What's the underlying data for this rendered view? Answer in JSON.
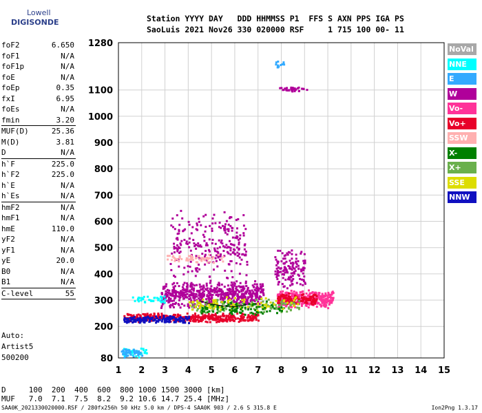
{
  "logo": {
    "line1": "Lowell",
    "line2": "DIGISONDE"
  },
  "header": {
    "line1": "Station YYYY DAY   DDD HHMMSS P1  FFS S AXN PPS IGA PS",
    "line2": "SaoLuis 2021 Nov26 330 020000 RSF     1 715 100 00- 11"
  },
  "params": [
    {
      "label": "foF2",
      "value": "6.650"
    },
    {
      "label": "foF1",
      "value": "N/A"
    },
    {
      "label": "foF1p",
      "value": "N/A"
    },
    {
      "label": "foE",
      "value": "N/A"
    },
    {
      "label": "foEp",
      "value": "0.35"
    },
    {
      "label": "fxI",
      "value": "6.95"
    },
    {
      "label": "foEs",
      "value": "N/A"
    },
    {
      "label": "fmin",
      "value": "3.20"
    },
    {
      "sep": true
    },
    {
      "label": "MUF(D)",
      "value": "25.36"
    },
    {
      "label": "M(D)",
      "value": "3.81"
    },
    {
      "label": "D",
      "value": "N/A"
    },
    {
      "sep": true
    },
    {
      "label": "h`F",
      "value": "225.0"
    },
    {
      "label": "h`F2",
      "value": "225.0"
    },
    {
      "label": "h`E",
      "value": "N/A"
    },
    {
      "label": "h`Es",
      "value": "N/A"
    },
    {
      "sep": true
    },
    {
      "label": "hmF2",
      "value": "N/A"
    },
    {
      "label": "hmF1",
      "value": "N/A"
    },
    {
      "label": "hmE",
      "value": "110.0"
    },
    {
      "label": "yF2",
      "value": "N/A"
    },
    {
      "label": "yF1",
      "value": "N/A"
    },
    {
      "label": "yE",
      "value": "20.0"
    },
    {
      "label": "B0",
      "value": "N/A"
    },
    {
      "label": "B1",
      "value": "N/A"
    },
    {
      "sep": true
    },
    {
      "label": "C-level",
      "value": "55"
    },
    {
      "sep": true
    }
  ],
  "auto": {
    "line1": "Auto:",
    "line2": "Artist5",
    "line3": "500200"
  },
  "muf_table": {
    "row_d": "D     100  200  400  600  800 1000 1500 3000 [km]",
    "row_muf": "MUF   7.0  7.1  7.5  8.2  9.2 10.6 14.7 25.4 [MHz]"
  },
  "footer": "SAA0K_2021330020000.RSF / 280fx256h 50 kHz 5.0 km / DPS-4 SAA0K 903 / 2.6 S 315.8 E",
  "version": "Ion2Png 1.3.17",
  "legend": [
    {
      "label": "NoVal",
      "color": "#a8a8a8"
    },
    {
      "label": "NNE",
      "color": "#00ffff"
    },
    {
      "label": "E",
      "color": "#33aaff"
    },
    {
      "label": "W",
      "color": "#b0009a"
    },
    {
      "label": "Vo-",
      "color": "#ff3399"
    },
    {
      "label": "Vo+",
      "color": "#e8002a"
    },
    {
      "label": "SSW",
      "color": "#ffb0b0"
    },
    {
      "label": "X-",
      "color": "#008000"
    },
    {
      "label": "X+",
      "color": "#6ab04c"
    },
    {
      "label": "SSE",
      "color": "#dddd00"
    },
    {
      "label": "NNW",
      "color": "#1010c0"
    }
  ],
  "chart_data": {
    "type": "scatter",
    "title": "",
    "xlabel": "",
    "ylabel": "",
    "xlim": [
      1,
      15
    ],
    "ylim": [
      80,
      1280
    ],
    "x_ticks": [
      "1",
      "2",
      "3",
      "4",
      "5",
      "6",
      "7",
      "8",
      "9",
      "10",
      "11",
      "12",
      "13",
      "14",
      "15"
    ],
    "y_ticks": [
      "80",
      "200",
      "300",
      "400",
      "500",
      "600",
      "700",
      "800",
      "900",
      "1000",
      "1100",
      "1280"
    ],
    "y_tick_values": [
      80,
      200,
      300,
      400,
      500,
      600,
      700,
      800,
      900,
      1000,
      1100,
      1280
    ],
    "grid": true,
    "legend_position": "right",
    "trace": {
      "x": [
        4.5,
        5.0,
        5.5,
        6.0,
        6.5
      ],
      "y": [
        297,
        285,
        278,
        275,
        283
      ]
    },
    "clusters": [
      {
        "color": "#b0009a",
        "x": [
          2.8,
          7.2
        ],
        "y": [
          270,
          380
        ],
        "n": 600
      },
      {
        "color": "#b0009a",
        "x": [
          3.2,
          6.5
        ],
        "y": [
          360,
          650
        ],
        "n": 260
      },
      {
        "color": "#e8002a",
        "x": [
          1.2,
          7.0
        ],
        "y": [
          218,
          255
        ],
        "n": 420
      },
      {
        "color": "#1010c0",
        "x": [
          1.2,
          4.0
        ],
        "y": [
          215,
          245
        ],
        "n": 150
      },
      {
        "color": "#ff3399",
        "x": [
          7.8,
          10.2
        ],
        "y": [
          270,
          345
        ],
        "n": 360
      },
      {
        "color": "#b0009a",
        "x": [
          7.7,
          9.0
        ],
        "y": [
          340,
          500
        ],
        "n": 140
      },
      {
        "color": "#e8002a",
        "x": [
          7.8,
          9.5
        ],
        "y": [
          285,
          330
        ],
        "n": 120
      },
      {
        "color": "#6ab04c",
        "x": [
          4.0,
          8.8
        ],
        "y": [
          250,
          310
        ],
        "n": 130
      },
      {
        "color": "#dddd00",
        "x": [
          4.0,
          8.8
        ],
        "y": [
          260,
          320
        ],
        "n": 90
      },
      {
        "color": "#008000",
        "x": [
          4.5,
          8.0
        ],
        "y": [
          240,
          300
        ],
        "n": 90
      },
      {
        "color": "#00ffff",
        "x": [
          1.1,
          2.2
        ],
        "y": [
          85,
          130
        ],
        "n": 40
      },
      {
        "color": "#33aaff",
        "x": [
          1.1,
          2.0
        ],
        "y": [
          82,
          120
        ],
        "n": 40
      },
      {
        "color": "#ffb0b0",
        "x": [
          3.0,
          5.5
        ],
        "y": [
          440,
          480
        ],
        "n": 60
      },
      {
        "color": "#b0009a",
        "x": [
          7.9,
          9.1
        ],
        "y": [
          1095,
          1115
        ],
        "n": 35
      },
      {
        "color": "#33aaff",
        "x": [
          7.7,
          8.1
        ],
        "y": [
          1185,
          1215
        ],
        "n": 12
      },
      {
        "color": "#00ffff",
        "x": [
          1.5,
          3.0
        ],
        "y": [
          290,
          320
        ],
        "n": 40
      }
    ]
  }
}
